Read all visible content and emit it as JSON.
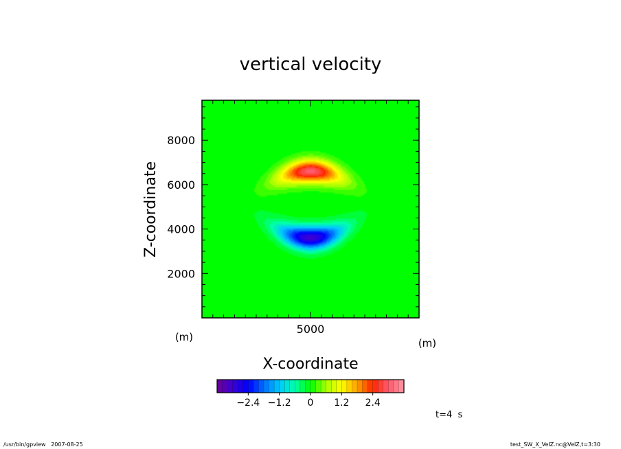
{
  "chart_data": {
    "type": "heatmap",
    "title": "vertical velocity",
    "xlabel": "X-coordinate",
    "ylabel": "Z-coordinate",
    "x_unit": "(m)",
    "y_unit": "(m)",
    "xlim": [
      0,
      10000
    ],
    "ylim": [
      0,
      9800
    ],
    "xticks": [
      5000
    ],
    "yticks": [
      2000,
      4000,
      6000,
      8000
    ],
    "field": {
      "background_value": 0,
      "features": [
        {
          "kind": "updraft",
          "center": [
            5000,
            6600
          ],
          "peak": 3.0
        },
        {
          "kind": "downdraft",
          "center": [
            5000,
            3600
          ],
          "peak": -3.0
        }
      ]
    },
    "colorbar": {
      "range": [
        -3.6,
        3.6
      ],
      "step": 0.2,
      "ticks": [
        -2.4,
        -1.2,
        0,
        1.2,
        2.4
      ],
      "tick_labels": [
        "−2.4",
        "−1.2",
        "0",
        "1.2",
        "2.4"
      ]
    },
    "time_label": "t=4  s",
    "grid": false,
    "legend": "colorbar-bottom"
  },
  "footer": {
    "left": "/usr/bin/gpview   2007-08-25",
    "right": "test_SW_X_VelZ.nc@VelZ,t=3:30"
  }
}
